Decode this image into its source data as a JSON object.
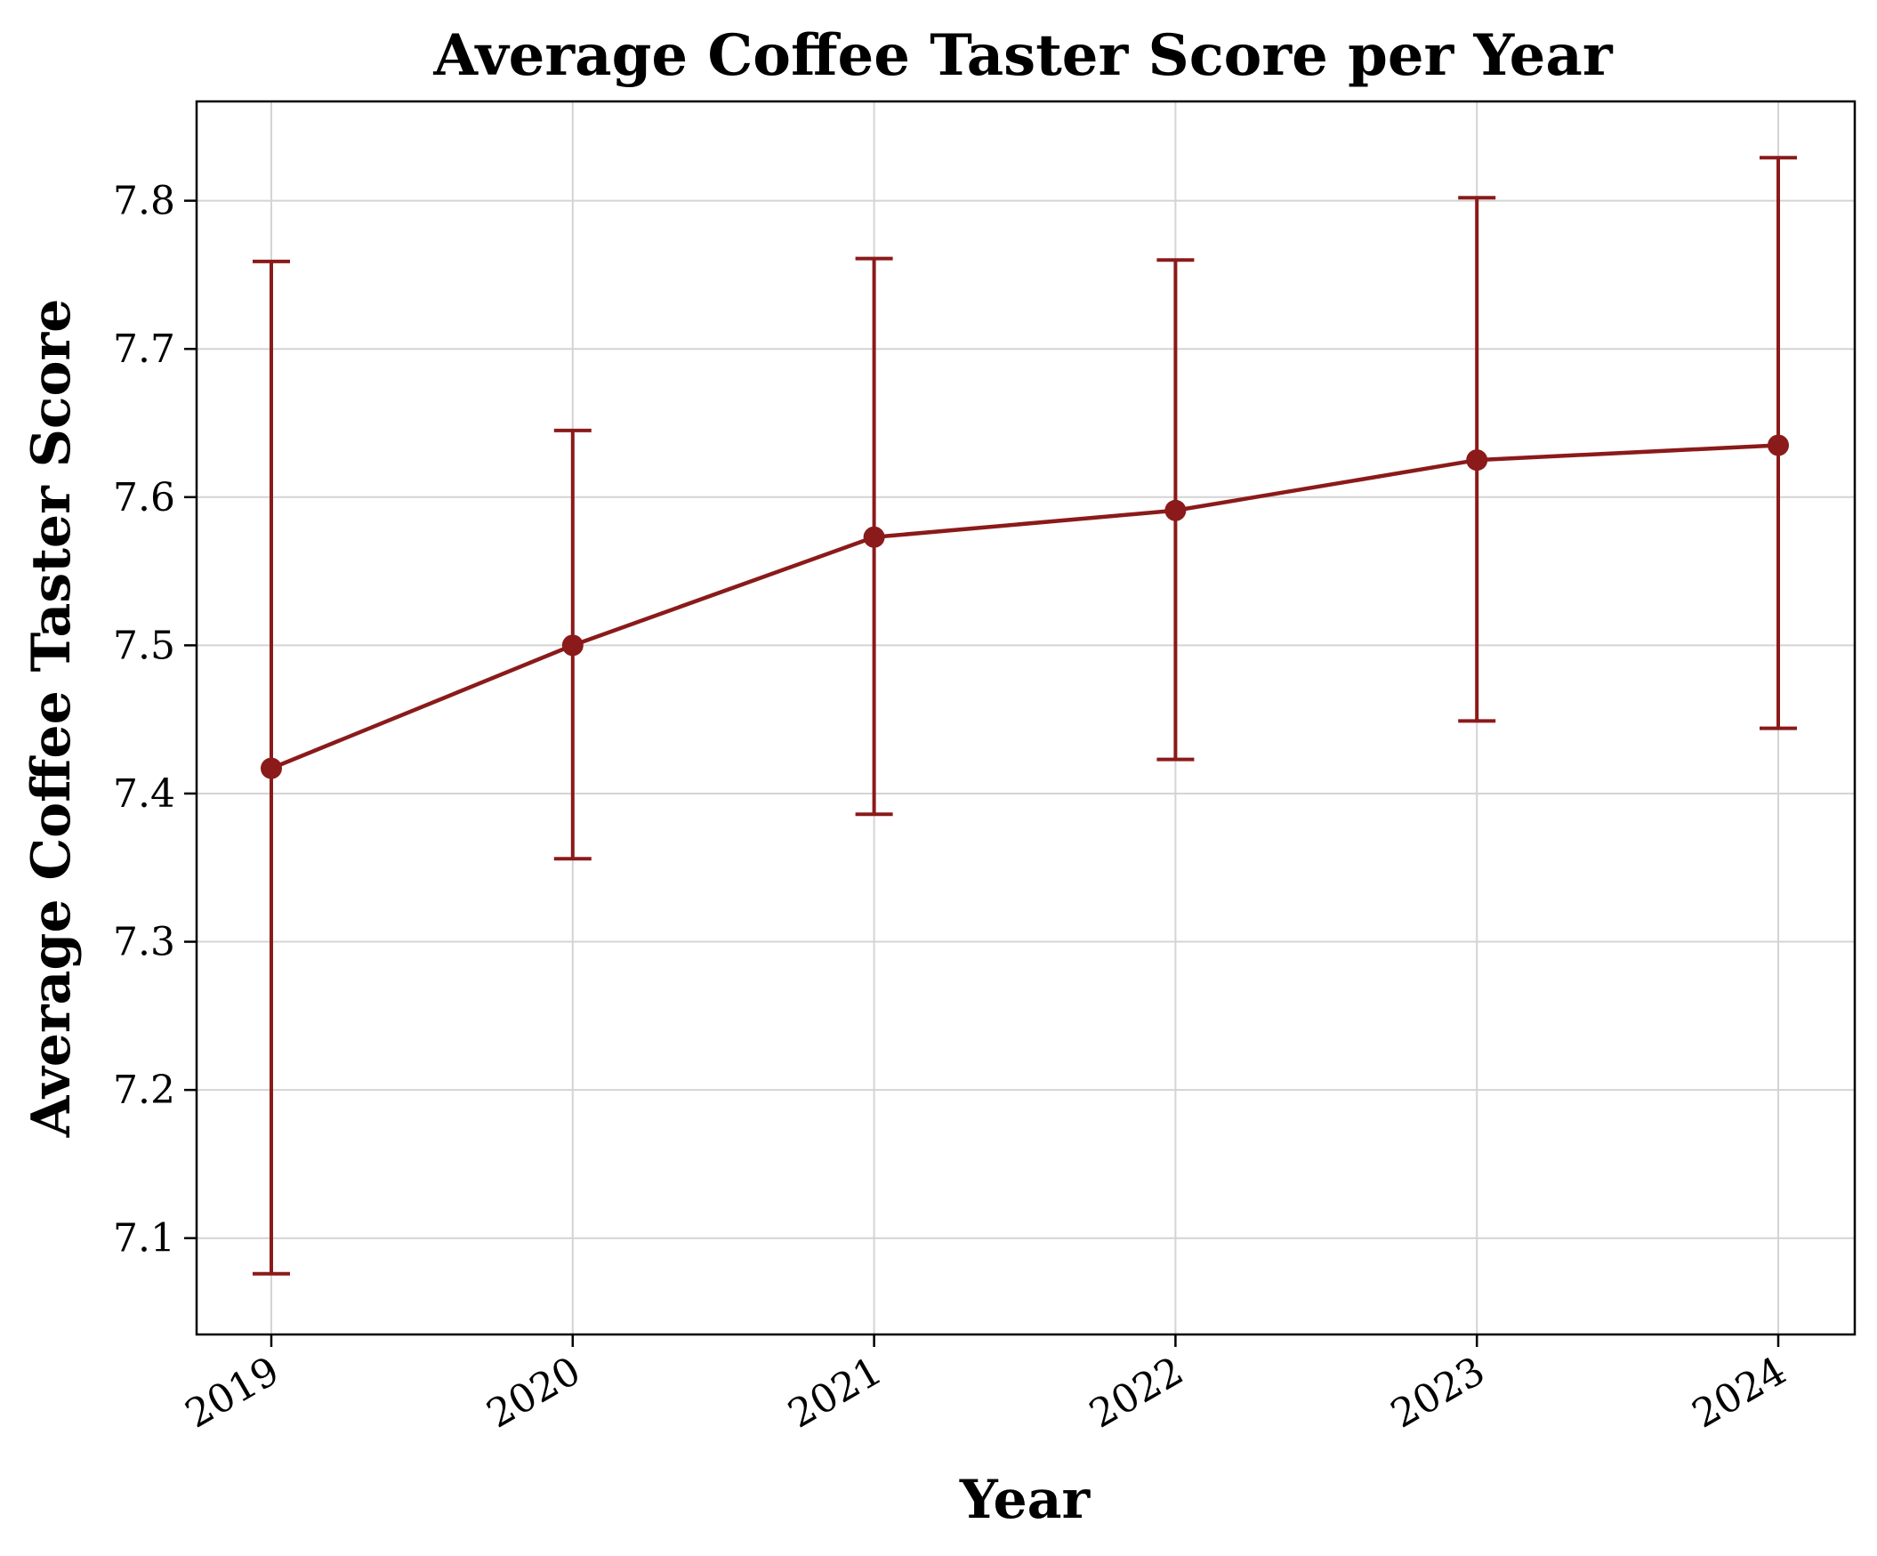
{
  "chart_data": {
    "type": "line",
    "title": "Average Coffee Taster Score per Year",
    "xlabel": "Year",
    "ylabel": "Average Coffee Taster Score",
    "categories": [
      "2019",
      "2020",
      "2021",
      "2022",
      "2023",
      "2024"
    ],
    "series": [
      {
        "values": [
          7.417,
          7.5,
          7.573,
          7.591,
          7.625,
          7.635
        ],
        "error_low": [
          7.076,
          7.356,
          7.386,
          7.423,
          7.449,
          7.444
        ],
        "error_high": [
          7.759,
          7.645,
          7.761,
          7.76,
          7.802,
          7.829
        ],
        "color": "#8b1a1a"
      }
    ],
    "ylim": [
      7.035,
      7.867
    ],
    "yticks": [
      "7.1",
      "7.2",
      "7.3",
      "7.4",
      "7.5",
      "7.6",
      "7.7",
      "7.8"
    ],
    "grid": true,
    "legend": "none"
  }
}
